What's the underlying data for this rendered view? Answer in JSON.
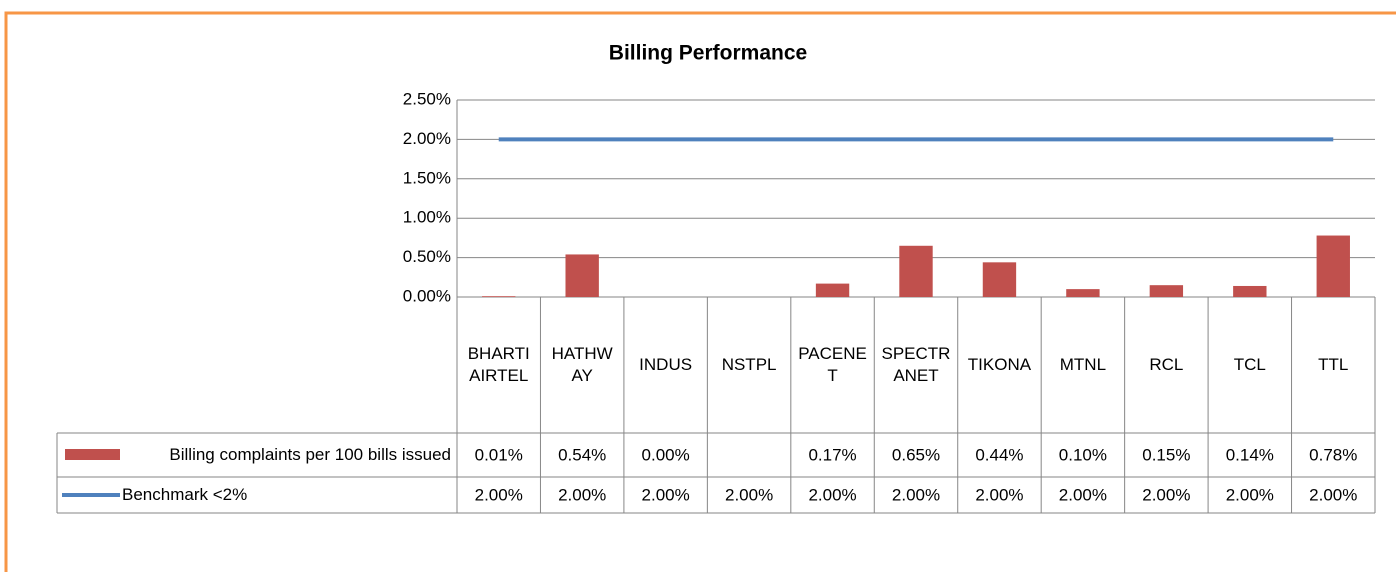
{
  "chart_data": {
    "type": "bar",
    "title": "Billing Performance",
    "categories": [
      "BHARTI AIRTEL",
      "HATHWAY",
      "INDUS",
      "NSTPL",
      "PACENET",
      "SPECTRANET",
      "TIKONA",
      "MTNL",
      "RCL",
      "TCL",
      "TTL"
    ],
    "series": [
      {
        "name": "Billing complaints per 100 bills issued",
        "type": "bar",
        "color": "#c0504d",
        "values": [
          0.01,
          0.54,
          0.0,
          null,
          0.17,
          0.65,
          0.44,
          0.1,
          0.15,
          0.14,
          0.78
        ],
        "value_labels": [
          "0.01%",
          "0.54%",
          "0.00%",
          null,
          "0.17%",
          "0.65%",
          "0.44%",
          "0.10%",
          "0.15%",
          "0.14%",
          "0.78%"
        ]
      },
      {
        "name": "Benchmark <2%",
        "type": "line",
        "color": "#4f81bd",
        "values": [
          2.0,
          2.0,
          2.0,
          2.0,
          2.0,
          2.0,
          2.0,
          2.0,
          2.0,
          2.0,
          2.0
        ],
        "value_labels": [
          "2.00%",
          "2.00%",
          "2.00%",
          "2.00%",
          "2.00%",
          "2.00%",
          "2.00%",
          "2.00%",
          "2.00%",
          "2.00%",
          "2.00%"
        ]
      }
    ],
    "ylim": [
      0,
      2.5
    ],
    "yticks": [
      {
        "value": 0,
        "label": "0.00%"
      },
      {
        "value": 0.5,
        "label": "0.50%"
      },
      {
        "value": 1.0,
        "label": "1.00%"
      },
      {
        "value": 1.5,
        "label": "1.50%"
      },
      {
        "value": 2.0,
        "label": "2.00%"
      },
      {
        "value": 2.5,
        "label": "2.50%"
      }
    ],
    "grid": true
  }
}
